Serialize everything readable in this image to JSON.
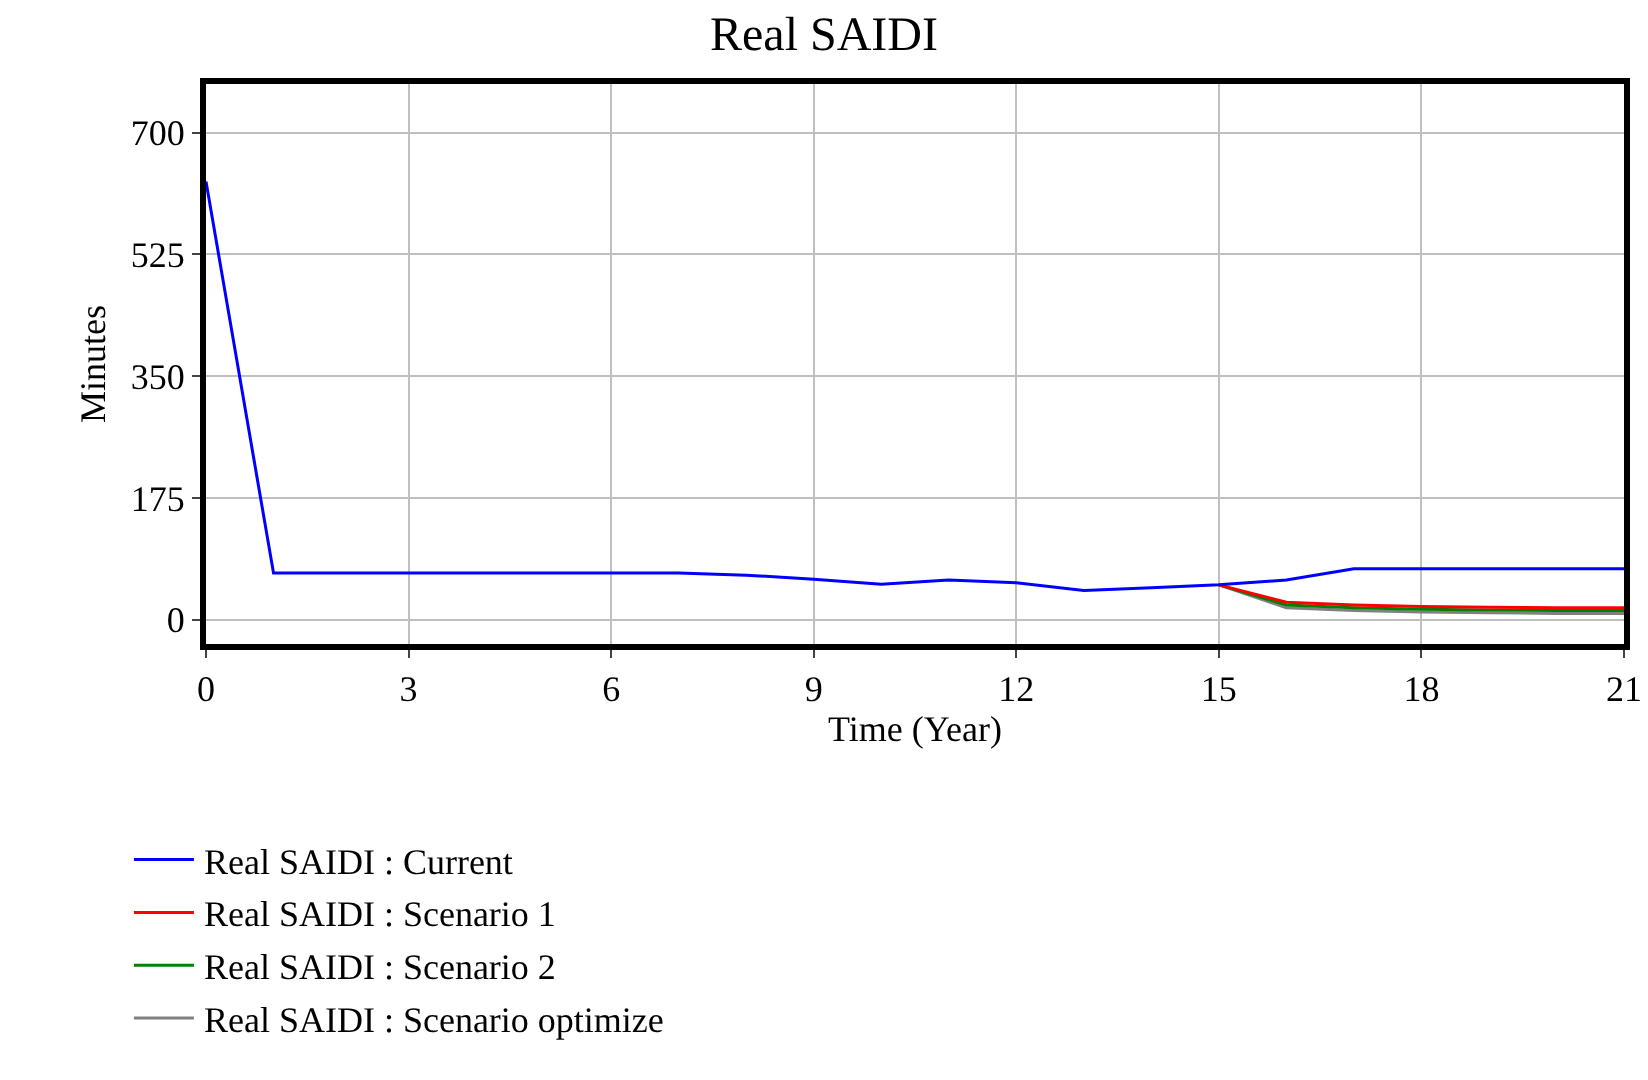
{
  "chart_data": {
    "type": "line",
    "title": "Real SAIDI",
    "xlabel": "Time (Year)",
    "ylabel": "Minutes",
    "x": [
      0,
      1,
      2,
      3,
      4,
      5,
      6,
      7,
      8,
      9,
      10,
      11,
      12,
      13,
      14,
      15,
      16,
      17,
      18,
      19,
      20,
      21
    ],
    "xlim": [
      0,
      21
    ],
    "xticks": [
      0,
      3,
      6,
      9,
      12,
      15,
      18,
      21
    ],
    "ylim": [
      -35,
      770
    ],
    "yticks": [
      0,
      175,
      350,
      525,
      700
    ],
    "grid": true,
    "legend": "bottom",
    "series": [
      {
        "name": "Real SAIDI : Current",
        "color": "#0000ff",
        "values": [
          630,
          67,
          67,
          67,
          67,
          67,
          67,
          67,
          64,
          58,
          51,
          57,
          53,
          42,
          46,
          50,
          57,
          73,
          73,
          73,
          73,
          73
        ]
      },
      {
        "name": "Real SAIDI : Scenario 1",
        "color": "#ff0000",
        "values": [
          null,
          null,
          null,
          null,
          null,
          null,
          null,
          null,
          null,
          null,
          null,
          null,
          null,
          null,
          null,
          50,
          25,
          21,
          19,
          18,
          17,
          17
        ]
      },
      {
        "name": "Real SAIDI : Scenario 2",
        "color": "#008000",
        "values": [
          null,
          null,
          null,
          null,
          null,
          null,
          null,
          null,
          null,
          null,
          null,
          null,
          null,
          null,
          null,
          50,
          21,
          17,
          15,
          14,
          13,
          13
        ]
      },
      {
        "name": "Real SAIDI : Scenario optimize",
        "color": "#808080",
        "values": [
          null,
          null,
          null,
          null,
          null,
          null,
          null,
          null,
          null,
          null,
          null,
          null,
          null,
          null,
          null,
          50,
          17,
          13,
          11,
          10,
          9,
          9
        ]
      }
    ]
  }
}
